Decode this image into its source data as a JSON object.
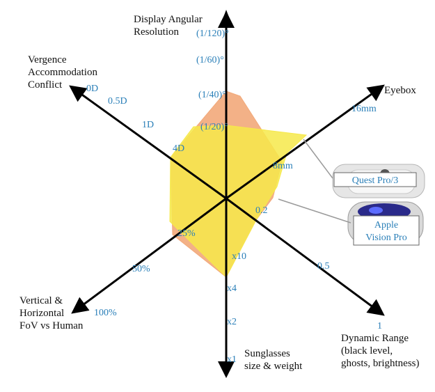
{
  "chart_data": {
    "type": "radar",
    "axes": [
      {
        "id": "resolution",
        "title_lines": [
          "Display Angular",
          "Resolution"
        ],
        "ticks": [
          "(1/120)°",
          "(1/60)°",
          "(1/40)°",
          "(1/20)°"
        ]
      },
      {
        "id": "eyebox",
        "title_lines": [
          "Eyebox"
        ],
        "ticks": [
          "16mm",
          "8mm"
        ]
      },
      {
        "id": "dynamic_range",
        "title_lines": [
          "Dynamic Range",
          "(black level,",
          "ghosts, brightness)"
        ],
        "ticks": [
          "1",
          "0.5",
          "0.2"
        ]
      },
      {
        "id": "sunglasses",
        "title_lines": [
          "Sunglasses",
          "size & weight"
        ],
        "ticks": [
          "x1",
          "x2",
          "x4",
          "x10"
        ]
      },
      {
        "id": "fov",
        "title_lines": [
          "Vertical &",
          "Horizontal",
          "FoV vs Human"
        ],
        "ticks": [
          "100%",
          "50%",
          "25%"
        ]
      },
      {
        "id": "vac",
        "title_lines": [
          "Vergence",
          "Accommodation",
          "Conflict"
        ],
        "ticks": [
          "0D",
          "0.5D",
          "1D",
          "4D"
        ]
      }
    ],
    "series": [
      {
        "name": "Apple Vision Pro",
        "color": "#f2a97a",
        "values": {
          "resolution": "(1/40)°",
          "eyebox": "8mm",
          "dynamic_range": "0.2",
          "sunglasses": "x4",
          "fov": "25%",
          "vac": "4D"
        }
      },
      {
        "name": "Quest Pro/3",
        "color": "#f6e94a",
        "values": {
          "resolution": "(1/20)°",
          "eyebox": "16mm",
          "dynamic_range": "0.2",
          "sunglasses": "x4",
          "fov": "25%",
          "vac": "4D"
        }
      }
    ],
    "legend": [
      {
        "label_lines": [
          "Quest Pro/3"
        ]
      },
      {
        "label_lines": [
          "Apple",
          "Vision Pro"
        ]
      }
    ]
  }
}
